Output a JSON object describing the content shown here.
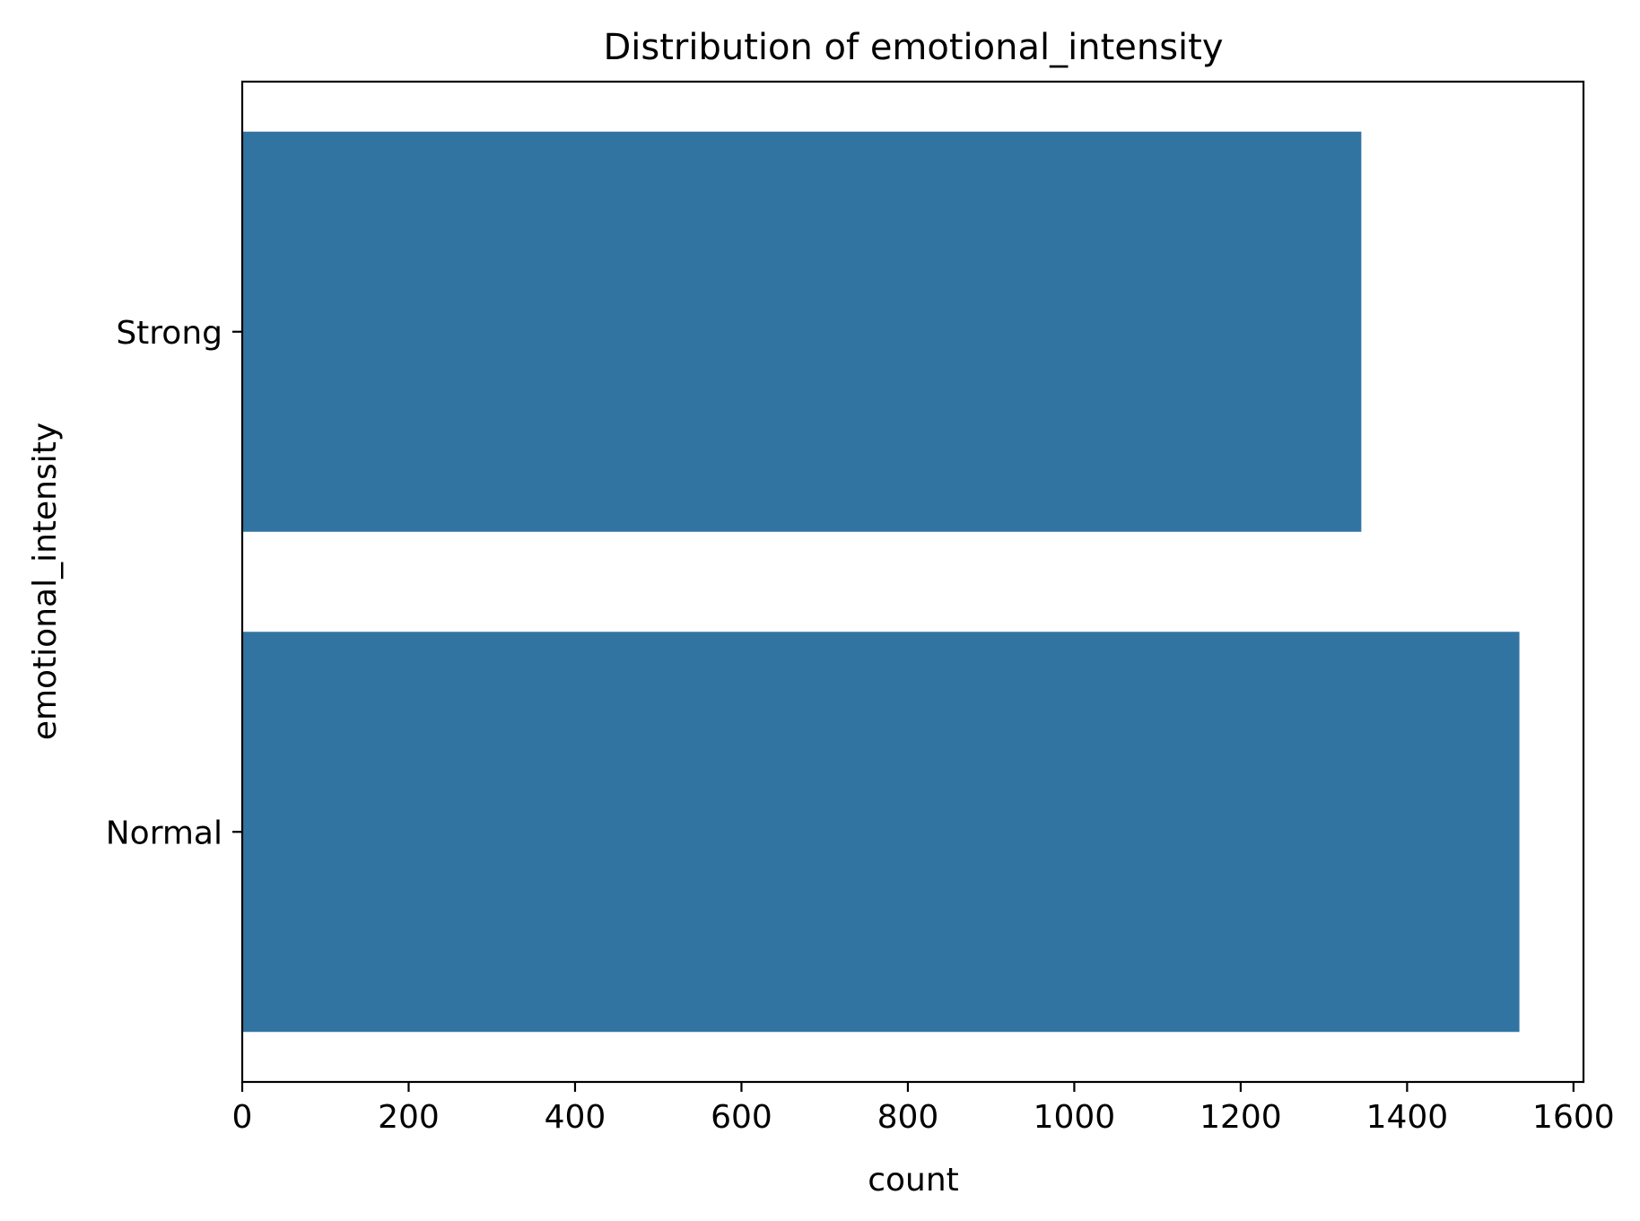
{
  "chart_data": {
    "type": "bar",
    "orientation": "horizontal",
    "title": "Distribution of emotional_intensity",
    "xlabel": "count",
    "ylabel": "emotional_intensity",
    "categories": [
      "Strong",
      "Normal"
    ],
    "values": [
      1345,
      1535
    ],
    "xlim": [
      0,
      1612
    ],
    "xticks": [
      0,
      200,
      400,
      600,
      800,
      1000,
      1200,
      1400,
      1600
    ],
    "bar_color": "#3274a1",
    "grid": false,
    "legend": "none"
  }
}
